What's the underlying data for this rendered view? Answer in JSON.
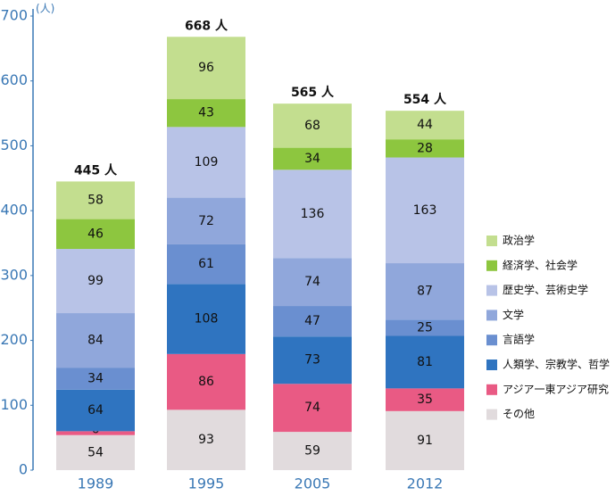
{
  "chart_data": {
    "type": "stacked-bar",
    "y_unit_label": "(人)",
    "categories": [
      "1989",
      "1995",
      "2005",
      "2012"
    ],
    "ylim": [
      0,
      700
    ],
    "yticks": [
      0,
      100,
      200,
      300,
      400,
      500,
      600,
      700
    ],
    "series": [
      {
        "name": "その他",
        "color": "#e1dbdd",
        "values": [
          54,
          93,
          59,
          91
        ]
      },
      {
        "name": "アジア一東アジア研究",
        "color": "#e95a84",
        "values": [
          6,
          86,
          74,
          35
        ]
      },
      {
        "name": "人類学、宗教学、哲学",
        "color": "#2f74c0",
        "values": [
          64,
          108,
          73,
          81
        ]
      },
      {
        "name": "言語学",
        "color": "#6a8fd0",
        "values": [
          34,
          61,
          47,
          25
        ]
      },
      {
        "name": "文学",
        "color": "#90a7db",
        "values": [
          84,
          72,
          74,
          87
        ]
      },
      {
        "name": "歴史学、芸術史学",
        "color": "#b8c3e7",
        "values": [
          99,
          109,
          136,
          163
        ]
      },
      {
        "name": "経済学、社会学",
        "color": "#8dc63f",
        "values": [
          46,
          43,
          34,
          28
        ]
      },
      {
        "name": "政治学",
        "color": "#c3de8f",
        "values": [
          58,
          96,
          68,
          44
        ]
      }
    ],
    "totals": {
      "values": [
        445,
        668,
        565,
        554
      ],
      "value_labels": [
        "445 人",
        "668 人",
        "565 人",
        "554 人"
      ]
    }
  }
}
